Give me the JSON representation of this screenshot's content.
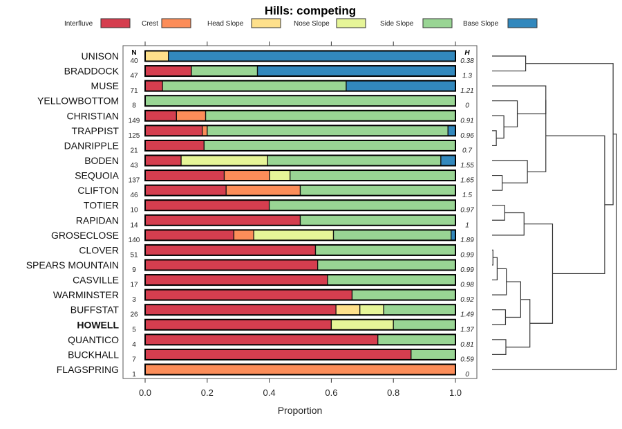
{
  "chart_data": {
    "type": "bar",
    "subtype": "stacked-horizontal-proportion",
    "title": "Hills: competing",
    "xlabel": "Proportion",
    "ylabel": "",
    "xlim": [
      0,
      1
    ],
    "xticks": [
      "0.0",
      "0.2",
      "0.4",
      "0.6",
      "0.8",
      "1.0"
    ],
    "grid": false,
    "legend_position": "top",
    "n_header": "N",
    "h_header": "H",
    "series": [
      {
        "name": "Interfluve",
        "color": "#D53E4F"
      },
      {
        "name": "Crest",
        "color": "#FC8D59"
      },
      {
        "name": "Head Slope",
        "color": "#FEE08B"
      },
      {
        "name": "Nose Slope",
        "color": "#E6F598"
      },
      {
        "name": "Side Slope",
        "color": "#99D594"
      },
      {
        "name": "Base Slope",
        "color": "#3288BD"
      }
    ],
    "rows": [
      {
        "label": "UNISON",
        "bold": false,
        "n": "40",
        "h": "0.38",
        "values": [
          0,
          0,
          0.075,
          0,
          0,
          0.925
        ]
      },
      {
        "label": "BRADDOCK",
        "bold": false,
        "n": "47",
        "h": "1.3",
        "values": [
          0.149,
          0,
          0,
          0,
          0.213,
          0.638
        ]
      },
      {
        "label": "MUSE",
        "bold": false,
        "n": "71",
        "h": "1.21",
        "values": [
          0.056,
          0,
          0,
          0,
          0.592,
          0.352
        ]
      },
      {
        "label": "YELLOWBOTTOM",
        "bold": false,
        "n": "8",
        "h": "0",
        "values": [
          0,
          0,
          0,
          0,
          1.0,
          0
        ]
      },
      {
        "label": "CHRISTIAN",
        "bold": false,
        "n": "149",
        "h": "0.91",
        "values": [
          0.101,
          0.094,
          0,
          0,
          0.805,
          0
        ]
      },
      {
        "label": "TRAPPIST",
        "bold": false,
        "n": "125",
        "h": "0.96",
        "values": [
          0.184,
          0.016,
          0,
          0,
          0.776,
          0.024
        ]
      },
      {
        "label": "DANRIPPLE",
        "bold": false,
        "n": "21",
        "h": "0.7",
        "values": [
          0.19,
          0,
          0,
          0,
          0.81,
          0
        ]
      },
      {
        "label": "BODEN",
        "bold": false,
        "n": "43",
        "h": "1.55",
        "values": [
          0.116,
          0,
          0,
          0.279,
          0.558,
          0.047
        ]
      },
      {
        "label": "SEQUOIA",
        "bold": false,
        "n": "137",
        "h": "1.65",
        "values": [
          0.255,
          0.146,
          0,
          0.066,
          0.533,
          0
        ]
      },
      {
        "label": "CLIFTON",
        "bold": false,
        "n": "46",
        "h": "1.5",
        "values": [
          0.261,
          0.239,
          0,
          0,
          0.5,
          0
        ]
      },
      {
        "label": "TOTIER",
        "bold": false,
        "n": "10",
        "h": "0.97",
        "values": [
          0.4,
          0,
          0,
          0,
          0.6,
          0
        ]
      },
      {
        "label": "RAPIDAN",
        "bold": false,
        "n": "14",
        "h": "1",
        "values": [
          0.5,
          0,
          0,
          0,
          0.5,
          0
        ]
      },
      {
        "label": "GROSECLOSE",
        "bold": false,
        "n": "140",
        "h": "1.89",
        "values": [
          0.286,
          0.064,
          0,
          0.257,
          0.379,
          0.014
        ]
      },
      {
        "label": "CLOVER",
        "bold": false,
        "n": "51",
        "h": "0.99",
        "values": [
          0.549,
          0,
          0,
          0,
          0.451,
          0
        ]
      },
      {
        "label": "SPEARS MOUNTAIN",
        "bold": false,
        "n": "9",
        "h": "0.99",
        "values": [
          0.556,
          0,
          0,
          0,
          0.444,
          0
        ]
      },
      {
        "label": "CASVILLE",
        "bold": false,
        "n": "17",
        "h": "0.98",
        "values": [
          0.588,
          0,
          0,
          0,
          0.412,
          0
        ]
      },
      {
        "label": "WARMINSTER",
        "bold": false,
        "n": "3",
        "h": "0.92",
        "values": [
          0.667,
          0,
          0,
          0,
          0.333,
          0
        ]
      },
      {
        "label": "BUFFSTAT",
        "bold": false,
        "n": "26",
        "h": "1.49",
        "values": [
          0.615,
          0,
          0.077,
          0.077,
          0.231,
          0
        ]
      },
      {
        "label": "HOWELL",
        "bold": true,
        "n": "5",
        "h": "1.37",
        "values": [
          0.6,
          0,
          0,
          0.2,
          0.2,
          0
        ]
      },
      {
        "label": "QUANTICO",
        "bold": false,
        "n": "4",
        "h": "0.81",
        "values": [
          0.75,
          0,
          0,
          0,
          0.25,
          0
        ]
      },
      {
        "label": "BUCKHALL",
        "bold": false,
        "n": "7",
        "h": "0.59",
        "values": [
          0.857,
          0,
          0,
          0,
          0.143,
          0
        ]
      },
      {
        "label": "FLAGSPRING",
        "bold": false,
        "n": "1",
        "h": "0",
        "values": [
          0,
          1.0,
          0,
          0,
          0,
          0
        ]
      }
    ],
    "dendrogram": {
      "note": "merge heights in relative dissimilarity units (0 = leaf, 1 = root)",
      "merges": [
        {
          "id": "m1",
          "left": "TRAPPIST",
          "right": "DANRIPPLE",
          "height": 0.034
        },
        {
          "id": "m2",
          "left": "CHRISTIAN",
          "right": "m1",
          "height": 0.095
        },
        {
          "id": "m3",
          "left": "YELLOWBOTTOM",
          "right": "m2",
          "height": 0.203
        },
        {
          "id": "m4",
          "left": "MUSE",
          "right": "m3",
          "height": 0.432
        },
        {
          "id": "m5",
          "left": "SEQUOIA",
          "right": "CLIFTON",
          "height": 0.081
        },
        {
          "id": "m6",
          "left": "BODEN",
          "right": "m5",
          "height": 0.284
        },
        {
          "id": "m7",
          "left": "m4",
          "right": "m6",
          "height": 0.432
        },
        {
          "id": "m8",
          "left": "UNISON",
          "right": "BRADDOCK",
          "height": 0.27
        },
        {
          "id": "m9",
          "left": "TOTIER",
          "right": "RAPIDAN",
          "height": 0.101
        },
        {
          "id": "m10",
          "left": "m9",
          "right": "GROSECLOSE",
          "height": 0.257
        },
        {
          "id": "m11",
          "left": "CLOVER",
          "right": "SPEARS MOUNTAIN",
          "height": 0.007
        },
        {
          "id": "m12",
          "left": "m11",
          "right": "CASVILLE",
          "height": 0.041
        },
        {
          "id": "m13",
          "left": "m12",
          "right": "WARMINSTER",
          "height": 0.115
        },
        {
          "id": "m14",
          "left": "BUFFSTAT",
          "right": "HOWELL",
          "height": 0.108
        },
        {
          "id": "m15",
          "left": "m13",
          "right": "m14",
          "height": 0.23
        },
        {
          "id": "m16",
          "left": "QUANTICO",
          "right": "BUCKHALL",
          "height": 0.111
        },
        {
          "id": "m17",
          "left": "m15",
          "right": "m16",
          "height": 0.304
        },
        {
          "id": "m18",
          "left": "m10",
          "right": "m17",
          "height": 0.486
        },
        {
          "id": "m19",
          "left": "m7",
          "right": "m18",
          "height": 0.905
        },
        {
          "id": "m20",
          "left": "m8",
          "right": "m19",
          "height": 0.973
        },
        {
          "id": "m21",
          "left": "m20",
          "right": "FLAGSPRING",
          "height": 1.0
        }
      ]
    }
  }
}
